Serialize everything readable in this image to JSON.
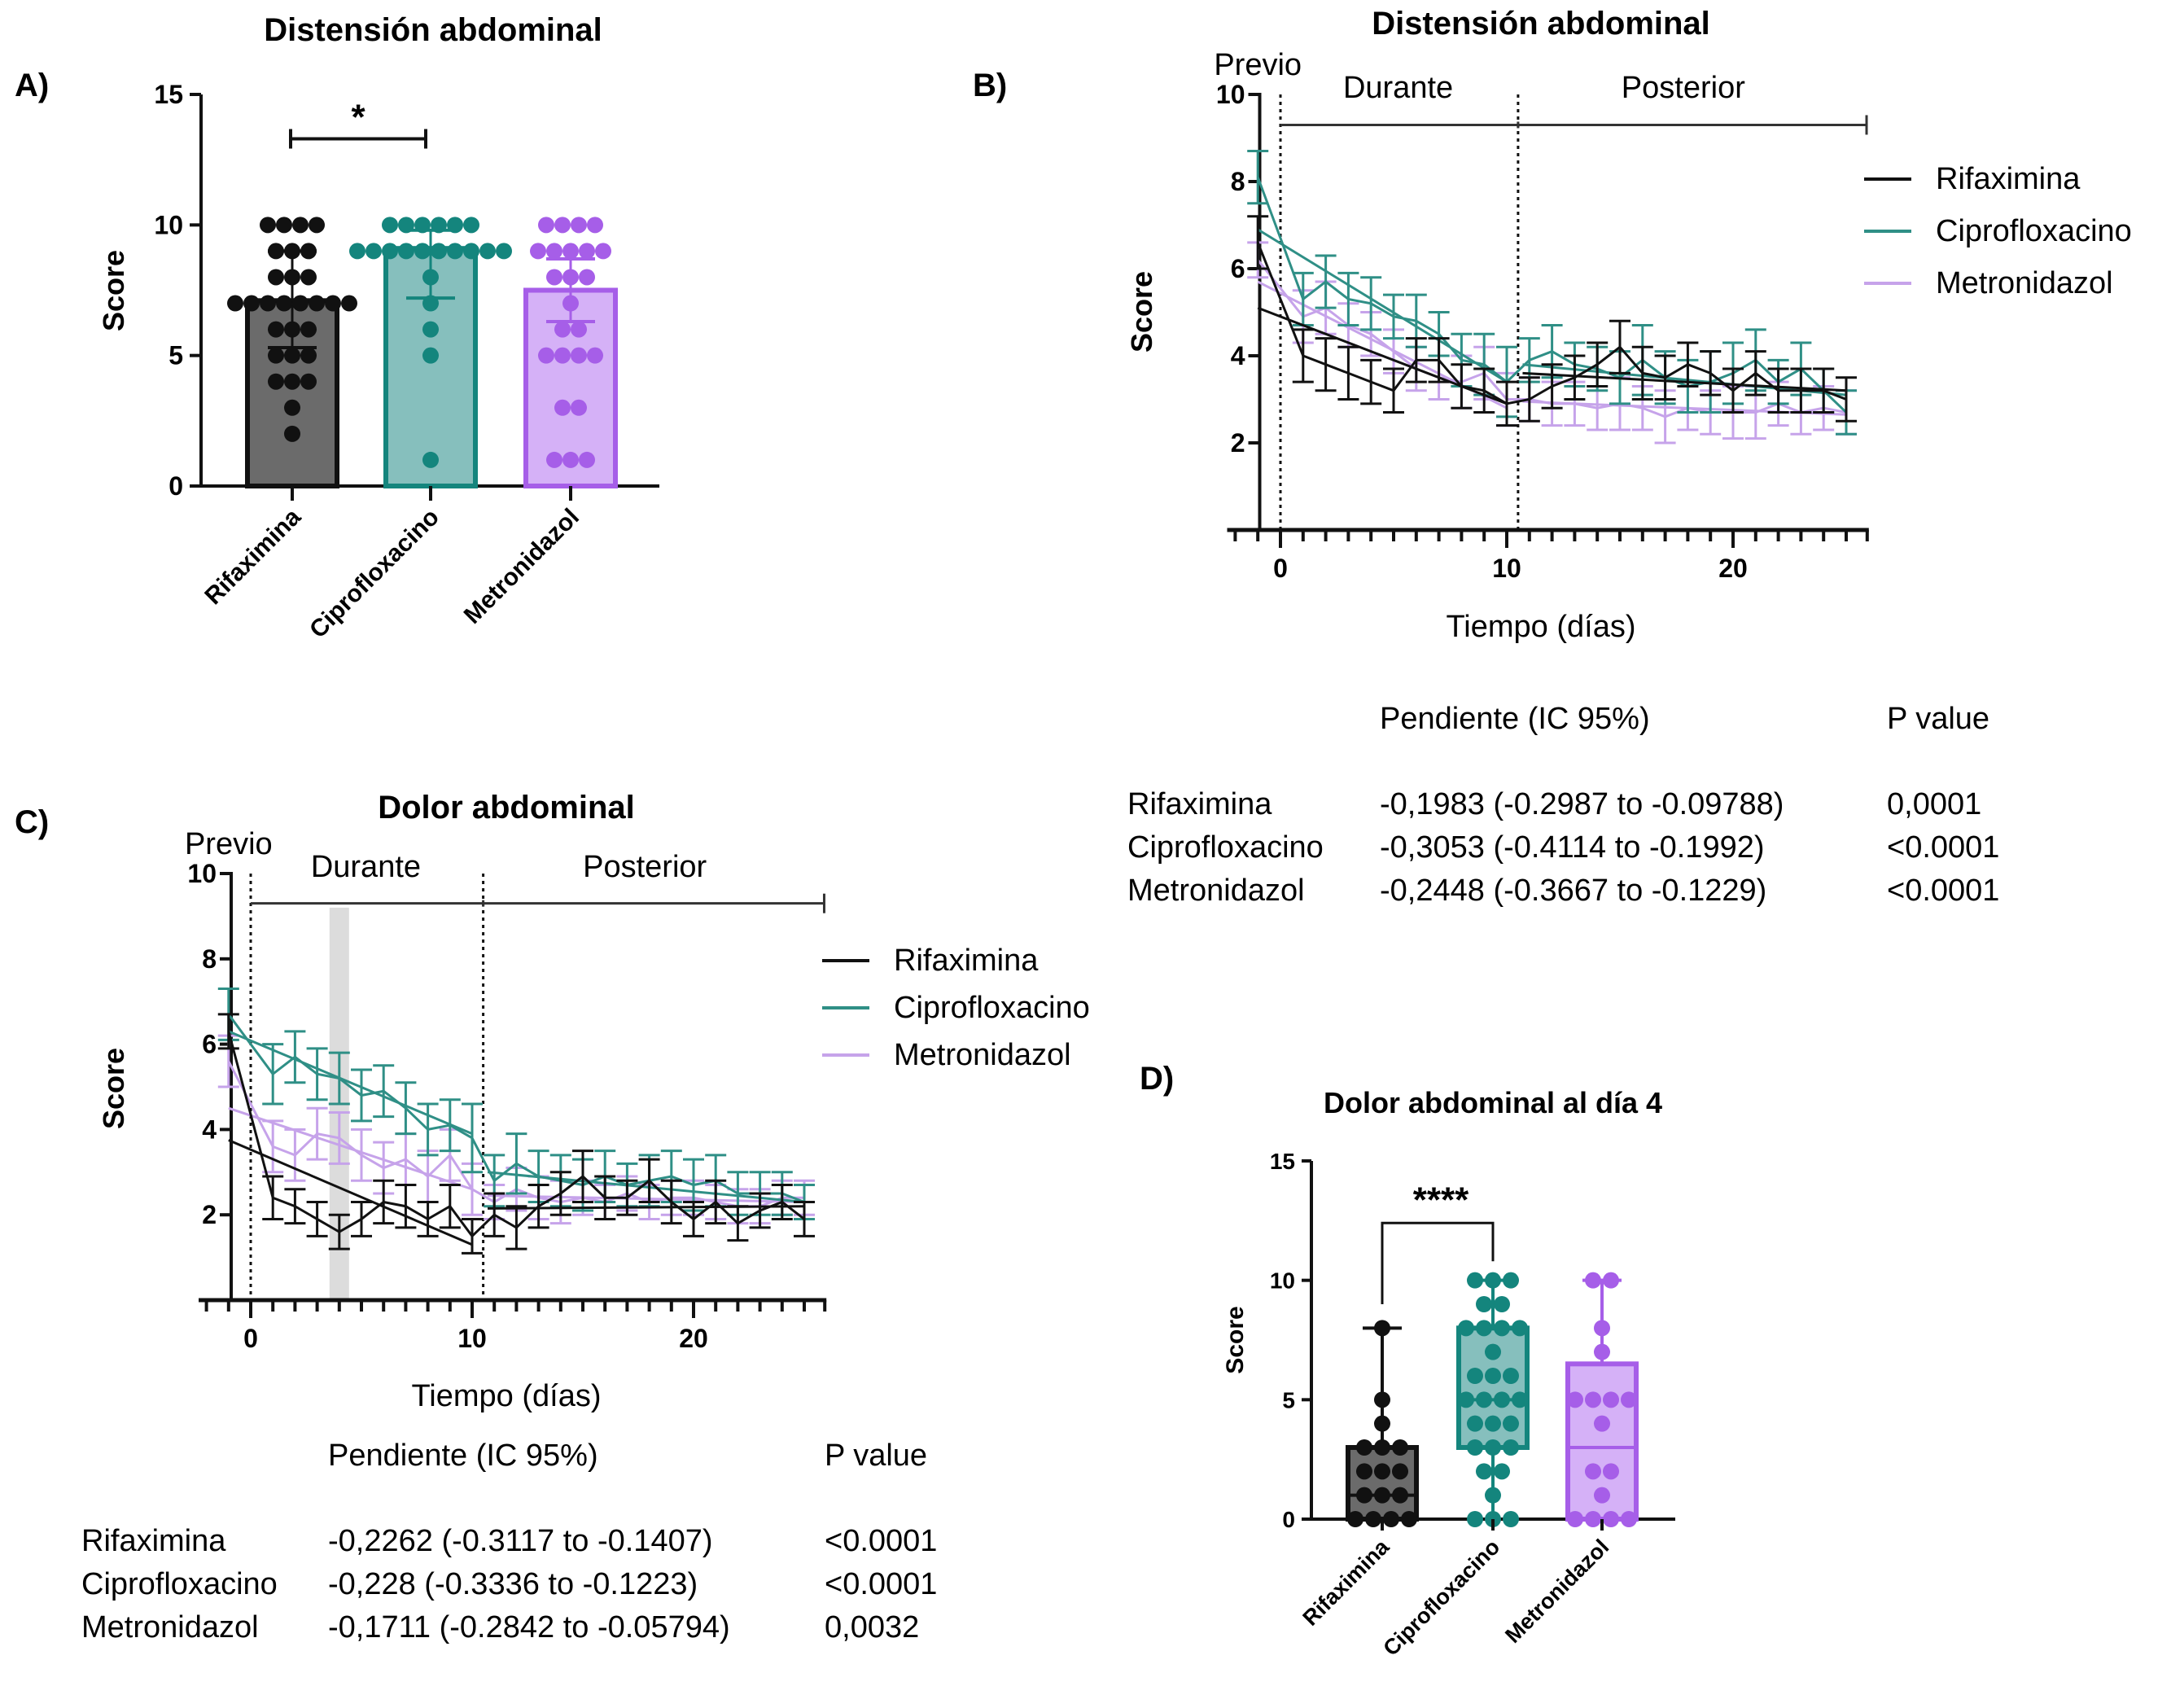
{
  "colors": {
    "rifaximina": "#111111",
    "rifaximina_fill": "#6b6b6b",
    "ciprofloxacino": "#14857d",
    "ciprofloxacino_line": "#2f8f86",
    "ciprofloxacino_fill": "#86bfbd",
    "metronidazol": "#a65ee8",
    "metronidazol_line": "#c6a3ea",
    "metronidazol_fill": "#d5b1f7",
    "highlight": "#dcdcdc"
  },
  "chart_data": [
    {
      "id": "A",
      "panel_label": "A)",
      "type": "bar",
      "title": "Distensión abdominal",
      "ylabel": "Score",
      "xlabel": "",
      "ylim": [
        0,
        15
      ],
      "yticks": [
        "0",
        "5",
        "10",
        "15"
      ],
      "categories": [
        "Rifaximina",
        "Ciprofloxacino",
        "Metronidazol"
      ],
      "values": [
        7.1,
        9.1,
        7.5
      ],
      "error_upper": [
        9.0,
        9.8,
        8.7
      ],
      "error_lower": [
        5.3,
        7.2,
        6.3
      ],
      "points": [
        [
          10,
          10,
          10,
          10,
          9,
          9,
          9,
          8,
          8,
          8,
          7,
          7,
          7,
          7,
          7,
          7,
          7,
          7,
          6,
          6,
          6,
          5,
          5,
          5,
          4,
          4,
          4,
          3,
          2
        ],
        [
          10,
          10,
          10,
          10,
          10,
          10,
          9,
          9,
          9,
          9,
          9,
          9,
          9,
          9,
          9,
          9,
          8,
          7,
          6,
          5,
          1
        ],
        [
          10,
          10,
          10,
          10,
          9,
          9,
          9,
          9,
          9,
          8,
          8,
          8,
          7,
          6,
          6,
          5,
          5,
          5,
          5,
          3,
          3,
          1,
          1,
          1
        ]
      ],
      "significance": {
        "between": [
          0,
          1
        ],
        "label": "*"
      }
    },
    {
      "id": "B",
      "panel_label": "B)",
      "type": "line",
      "title": "Distensión abdominal",
      "xlabel": "Tiempo (días)",
      "ylabel": "Score",
      "xlim": [
        -2.5,
        26
      ],
      "ylim": [
        0,
        10
      ],
      "xticks": [
        "0",
        "10",
        "20"
      ],
      "yticks": [
        "2",
        "4",
        "6",
        "8",
        "10"
      ],
      "phases": [
        {
          "label": "Previo"
        },
        {
          "label": "Durante",
          "start": 0,
          "end": 10.5
        },
        {
          "label": "Posterior",
          "start": 10.5,
          "end": 26
        }
      ],
      "x": [
        -1,
        1,
        2,
        3,
        4,
        5,
        6,
        7,
        8,
        9,
        10,
        11,
        12,
        13,
        14,
        15,
        16,
        17,
        18,
        19,
        20,
        21,
        22,
        23,
        24,
        25
      ],
      "series": [
        {
          "name": "Rifaximina",
          "values": [
            6.6,
            4.0,
            3.8,
            3.6,
            3.4,
            3.2,
            3.9,
            3.9,
            3.3,
            3.2,
            2.9,
            3.0,
            3.3,
            3.5,
            3.8,
            4.2,
            3.6,
            3.5,
            3.8,
            3.6,
            3.2,
            3.6,
            3.2,
            3.2,
            3.2,
            3.0
          ],
          "err": [
            0.6,
            0.6,
            0.6,
            0.6,
            0.5,
            0.5,
            0.5,
            0.5,
            0.5,
            0.5,
            0.5,
            0.5,
            0.5,
            0.5,
            0.5,
            0.6,
            0.6,
            0.5,
            0.5,
            0.5,
            0.5,
            0.5,
            0.5,
            0.5,
            0.5,
            0.5
          ],
          "fit": [
            5.1,
            2.9
          ],
          "fit_post": [
            3.6,
            3.2
          ]
        },
        {
          "name": "Ciprofloxacino",
          "values": [
            8.1,
            5.3,
            5.7,
            5.3,
            5.2,
            4.9,
            4.8,
            4.5,
            3.9,
            3.8,
            3.4,
            3.9,
            4.1,
            3.8,
            3.7,
            3.5,
            3.9,
            3.5,
            3.3,
            3.4,
            3.6,
            3.9,
            3.4,
            3.7,
            3.2,
            2.7
          ],
          "err": [
            0.6,
            0.6,
            0.6,
            0.6,
            0.6,
            0.5,
            0.6,
            0.5,
            0.6,
            0.7,
            0.8,
            0.5,
            0.6,
            0.5,
            0.5,
            0.6,
            0.8,
            0.6,
            0.6,
            0.7,
            0.7,
            0.7,
            0.5,
            0.6,
            0.5,
            0.5
          ],
          "fit": [
            6.9,
            3.4
          ],
          "fit_post": [
            3.8,
            3.1
          ]
        },
        {
          "name": "Metronidazol",
          "values": [
            6.2,
            4.9,
            5.1,
            4.7,
            4.5,
            4.1,
            3.7,
            3.5,
            3.4,
            3.6,
            3.0,
            3.0,
            2.9,
            2.9,
            2.8,
            2.9,
            2.8,
            2.6,
            2.8,
            2.7,
            2.7,
            2.7,
            2.9,
            2.7,
            2.8,
            2.7
          ],
          "err": [
            0.4,
            0.6,
            0.6,
            0.5,
            0.5,
            0.5,
            0.5,
            0.5,
            0.6,
            0.6,
            0.6,
            0.5,
            0.5,
            0.5,
            0.5,
            0.6,
            0.5,
            0.6,
            0.5,
            0.5,
            0.6,
            0.6,
            0.5,
            0.5,
            0.5,
            0.5
          ],
          "fit": [
            5.7,
            2.8
          ],
          "fit_post": [
            2.95,
            2.65
          ]
        }
      ],
      "legend": "right",
      "stats": {
        "header": [
          "",
          "Pendiente (IC 95%)",
          "P value"
        ],
        "rows": [
          [
            "Rifaximina",
            "-0,1983 (-0.2987 to -0.09788)",
            "0,0001"
          ],
          [
            "Ciprofloxacino",
            "-0,3053 (-0.4114 to -0.1992)",
            "<0.0001"
          ],
          [
            "Metronidazol",
            "-0,2448 (-0.3667 to -0.1229)",
            "<0.0001"
          ]
        ]
      }
    },
    {
      "id": "C",
      "panel_label": "C)",
      "type": "line",
      "title": "Dolor abdominal",
      "xlabel": "Tiempo (días)",
      "ylabel": "Score",
      "xlim": [
        -2.5,
        26
      ],
      "ylim": [
        0,
        10
      ],
      "xticks": [
        "0",
        "10",
        "20"
      ],
      "yticks": [
        "2",
        "4",
        "6",
        "8",
        "10"
      ],
      "highlight_day": 4,
      "phases": [
        {
          "label": "Previo"
        },
        {
          "label": "Durante",
          "start": 0,
          "end": 10.5
        },
        {
          "label": "Posterior",
          "start": 10.5,
          "end": 26
        }
      ],
      "x": [
        -1,
        1,
        2,
        3,
        4,
        5,
        6,
        7,
        8,
        9,
        10,
        11,
        12,
        13,
        14,
        15,
        16,
        17,
        18,
        19,
        20,
        21,
        22,
        23,
        24,
        25
      ],
      "series": [
        {
          "name": "Rifaximina",
          "values": [
            6.3,
            2.4,
            2.2,
            1.9,
            1.6,
            1.9,
            2.3,
            2.2,
            1.9,
            2.2,
            1.5,
            2.0,
            1.7,
            2.2,
            2.5,
            2.9,
            2.4,
            2.4,
            2.8,
            2.3,
            1.9,
            2.3,
            1.8,
            2.1,
            2.3,
            1.9
          ],
          "err": [
            0.4,
            0.5,
            0.4,
            0.4,
            0.4,
            0.4,
            0.5,
            0.5,
            0.4,
            0.5,
            0.4,
            0.5,
            0.5,
            0.5,
            0.5,
            0.6,
            0.5,
            0.4,
            0.5,
            0.5,
            0.4,
            0.5,
            0.4,
            0.4,
            0.4,
            0.4
          ],
          "fit": [
            3.75,
            1.3
          ],
          "fit_post": [
            2.15,
            2.2
          ]
        },
        {
          "name": "Ciprofloxacino",
          "values": [
            6.7,
            5.3,
            5.7,
            5.3,
            5.2,
            4.8,
            4.9,
            4.5,
            4.0,
            4.1,
            3.8,
            2.8,
            3.2,
            2.9,
            2.8,
            2.7,
            2.9,
            2.7,
            2.8,
            2.9,
            2.7,
            2.8,
            2.5,
            2.5,
            2.5,
            2.3
          ],
          "err": [
            0.6,
            0.7,
            0.6,
            0.6,
            0.6,
            0.6,
            0.6,
            0.6,
            0.6,
            0.6,
            0.8,
            0.6,
            0.7,
            0.6,
            0.6,
            0.6,
            0.6,
            0.5,
            0.6,
            0.6,
            0.6,
            0.6,
            0.5,
            0.5,
            0.5,
            0.4
          ],
          "fit": [
            6.3,
            3.9
          ],
          "fit_post": [
            3.0,
            2.3
          ]
        },
        {
          "name": "Metronidazol",
          "values": [
            5.6,
            3.6,
            3.4,
            3.9,
            3.8,
            3.4,
            3.1,
            3.3,
            2.9,
            3.4,
            2.6,
            2.3,
            2.6,
            2.4,
            2.3,
            2.4,
            2.3,
            2.5,
            2.3,
            2.4,
            2.4,
            2.3,
            2.2,
            2.2,
            2.4,
            2.4
          ],
          "err": [
            0.6,
            0.6,
            0.6,
            0.6,
            0.6,
            0.6,
            0.6,
            0.6,
            0.6,
            0.6,
            0.6,
            0.4,
            0.5,
            0.5,
            0.5,
            0.4,
            0.4,
            0.4,
            0.4,
            0.4,
            0.4,
            0.4,
            0.4,
            0.4,
            0.4,
            0.4
          ],
          "fit": [
            4.5,
            2.6
          ],
          "fit_post": [
            2.45,
            2.3
          ]
        }
      ],
      "legend": "right",
      "stats": {
        "header": [
          "",
          "Pendiente (IC 95%)",
          "P value"
        ],
        "rows": [
          [
            "Rifaximina",
            "-0,2262 (-0.3117 to -0.1407)",
            "<0.0001"
          ],
          [
            "Ciprofloxacino",
            "-0,228 (-0.3336 to -0.1223)",
            "<0.0001"
          ],
          [
            "Metronidazol",
            "-0,1711 (-0.2842 to -0.05794)",
            "0,0032"
          ]
        ]
      }
    },
    {
      "id": "D",
      "panel_label": "D)",
      "type": "box",
      "title": "Dolor abdominal al día 4",
      "ylabel": "Score",
      "xlabel": "",
      "ylim": [
        0,
        15
      ],
      "yticks": [
        "0",
        "5",
        "10",
        "15"
      ],
      "categories": [
        "Rifaximina",
        "Ciprofloxacino",
        "Metronidazol"
      ],
      "boxes": [
        {
          "min": 0,
          "q1": 0,
          "median": 1,
          "q3": 3,
          "max": 8
        },
        {
          "min": 0,
          "q1": 3,
          "median": 5,
          "q3": 8,
          "max": 10
        },
        {
          "min": 0,
          "q1": 0,
          "median": 3,
          "q3": 6.5,
          "max": 10
        }
      ],
      "points": [
        [
          8,
          5,
          4,
          3,
          3,
          3,
          2,
          2,
          2,
          1,
          1,
          1,
          0,
          0,
          0,
          0,
          0,
          0
        ],
        [
          10,
          10,
          10,
          9,
          9,
          8,
          8,
          8,
          8,
          7,
          6,
          6,
          6,
          5,
          5,
          5,
          5,
          4,
          4,
          4,
          3,
          3,
          3,
          2,
          2,
          1,
          0,
          0,
          0
        ],
        [
          10,
          10,
          8,
          7,
          5,
          5,
          5,
          5,
          4,
          2,
          2,
          1,
          0,
          0,
          0,
          0,
          0,
          0
        ]
      ],
      "significance": {
        "between": [
          0,
          1
        ],
        "label": "****"
      }
    }
  ]
}
